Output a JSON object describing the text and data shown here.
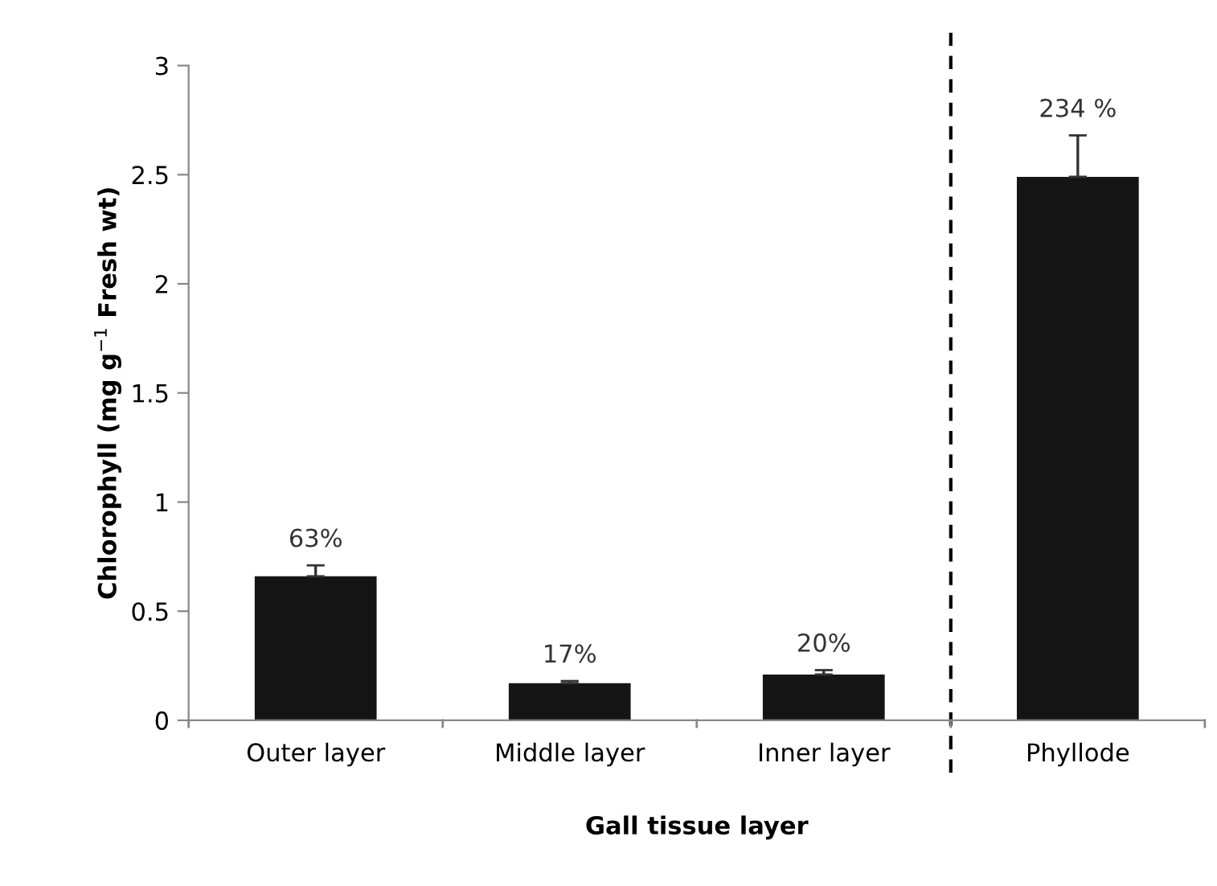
{
  "chart_data": {
    "type": "bar",
    "xlabel": "Gall tissue layer",
    "ylabel": "Chlorophyll (mg g$^{−1}$ Fresh wt)",
    "categories": [
      "Outer layer",
      "Middle layer",
      "Inner layer",
      "Phyllode"
    ],
    "values": [
      0.66,
      0.17,
      0.21,
      2.49
    ],
    "errors": [
      0.05,
      0.01,
      0.02,
      0.19
    ],
    "annotations": [
      {
        "text": "63%",
        "x": "Outer layer",
        "y": 0.71
      },
      {
        "text": "17%",
        "x": "Middle layer",
        "y": 0.18
      },
      {
        "text": "20%",
        "x": "Inner layer",
        "y": 0.23
      },
      {
        "text": "234 %",
        "x": "Phyllode",
        "y": 2.68
      }
    ],
    "color": "#151515",
    "ylim": [
      0,
      3
    ],
    "yticks": [
      0,
      0.5,
      1,
      1.5,
      2,
      2.5,
      3
    ],
    "grid": false
  }
}
